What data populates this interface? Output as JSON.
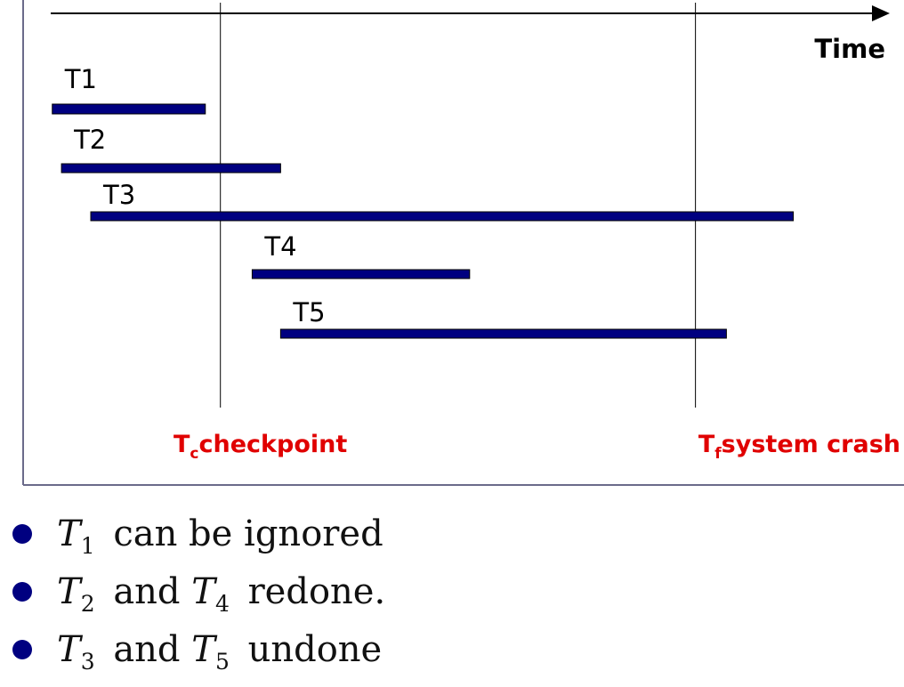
{
  "diagram": {
    "axis_label": "Time",
    "transactions": [
      {
        "name": "T1",
        "start": 0.4,
        "end": 18.7
      },
      {
        "name": "T2",
        "start": 1.5,
        "end": 27.7
      },
      {
        "name": "T3",
        "start": 5.0,
        "end": 89.0
      },
      {
        "name": "T4",
        "start": 24.3,
        "end": 50.3
      },
      {
        "name": "T5",
        "start": 27.7,
        "end": 81.0
      }
    ],
    "events": [
      {
        "main": "T",
        "sub": "c",
        "text": "checkpoint",
        "time": 20.5
      },
      {
        "main": "T",
        "sub": "f",
        "text": "system crash",
        "time": 77.3
      }
    ],
    "bar_color": "#000080",
    "event_color": "#e00000"
  },
  "bullets": [
    {
      "t1": "T",
      "s1": "1",
      "mid": "",
      "t2": "",
      "s2": "",
      "text": "can be ignored"
    },
    {
      "t1": "T",
      "s1": "2",
      "mid": "and",
      "t2": "T",
      "s2": "4",
      "text": "redone."
    },
    {
      "t1": "T",
      "s1": "3",
      "mid": "and",
      "t2": "T",
      "s2": "5",
      "text": "undone"
    }
  ]
}
